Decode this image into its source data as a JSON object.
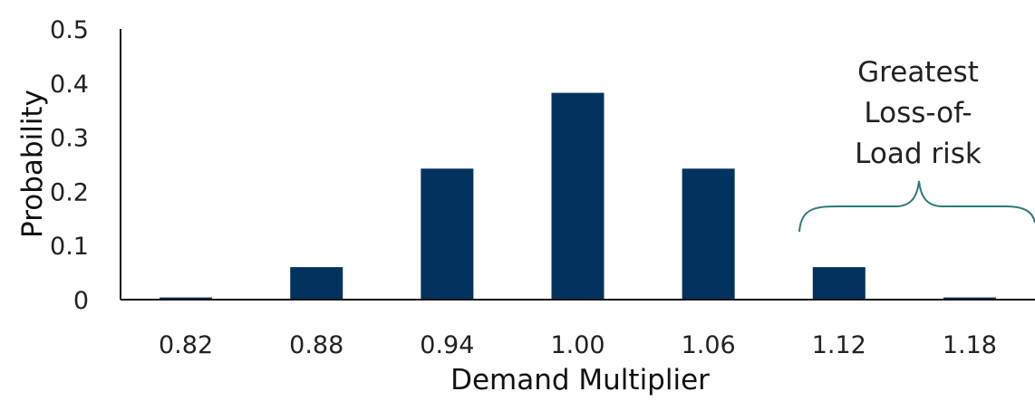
{
  "chart_data": {
    "type": "bar",
    "title": "",
    "xlabel": "Demand Multiplier",
    "ylabel": "Probability",
    "categories": [
      "0.82",
      "0.88",
      "0.94",
      "1.00",
      "1.06",
      "1.12",
      "1.18"
    ],
    "values": [
      0.004,
      0.06,
      0.242,
      0.382,
      0.242,
      0.06,
      0.004
    ],
    "ylim": [
      0,
      0.5
    ],
    "yticks": [
      "0",
      "0.1",
      "0.2",
      "0.3",
      "0.4",
      "0.5"
    ],
    "grid": false,
    "legend": "none",
    "bar_color": "#03325f",
    "annotation": {
      "lines": [
        "Greatest",
        "Loss-of-",
        "Load risk"
      ],
      "brace_color": "#2e7a78",
      "spans_categories": [
        "1.12",
        "1.18"
      ]
    }
  }
}
